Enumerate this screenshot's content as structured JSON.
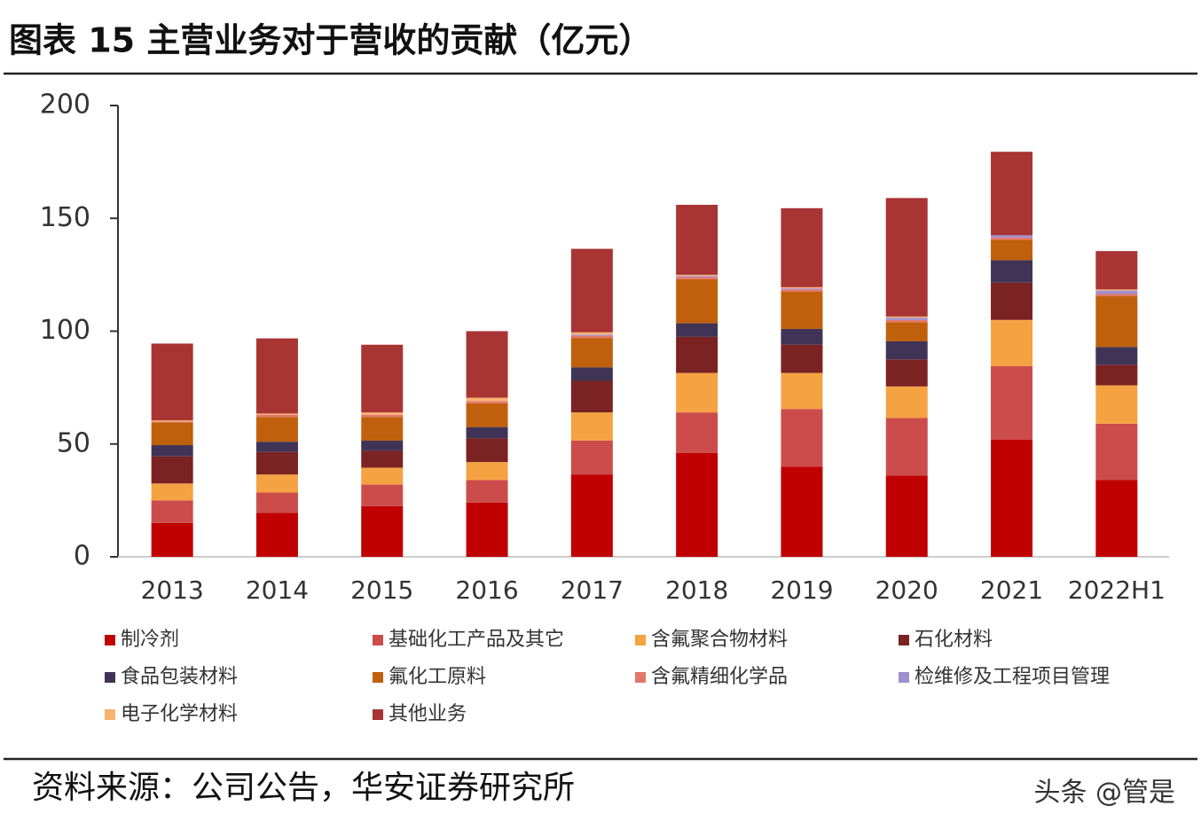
{
  "chart_data": {
    "type": "stacked_bar",
    "title": "图表 15 主营业务对于营收的贡献（亿元）",
    "categories": [
      "2013",
      "2014",
      "2015",
      "2016",
      "2017",
      "2018",
      "2019",
      "2020",
      "2021",
      "2022H1"
    ],
    "series": [
      {
        "name": "制冷剂",
        "color": "#c00000",
        "values": [
          15,
          19.5,
          22.5,
          24,
          36.5,
          46,
          40,
          36,
          52,
          34
        ]
      },
      {
        "name": "基础化工产品及其它",
        "color": "#cc4c4c",
        "values": [
          10,
          9,
          9.5,
          10,
          15,
          18,
          25.5,
          25.5,
          32.5,
          25
        ]
      },
      {
        "name": "含氟聚合物材料",
        "color": "#f5a243",
        "values": [
          7.5,
          8,
          7.5,
          8,
          12.5,
          17.5,
          16,
          14,
          20.5,
          17
        ]
      },
      {
        "name": "石化材料",
        "color": "#7b2222",
        "values": [
          12,
          10,
          7.5,
          10.5,
          14,
          16,
          12.5,
          12,
          16.5,
          9
        ]
      },
      {
        "name": "食品包装材料",
        "color": "#403456",
        "values": [
          5,
          4.5,
          4.5,
          5,
          6,
          6,
          7,
          8,
          10,
          8
        ]
      },
      {
        "name": "氟化工原料",
        "color": "#c0600c",
        "values": [
          10,
          11,
          10.5,
          10.5,
          13,
          19.5,
          16.5,
          8.5,
          9,
          22.5
        ]
      },
      {
        "name": "含氟精细化学品",
        "color": "#e2786c",
        "values": [
          0.5,
          1,
          1,
          1,
          1,
          1,
          1,
          1,
          1,
          1
        ]
      },
      {
        "name": "检维修及工程项目管理",
        "color": "#9f8fd2",
        "values": [
          0,
          0,
          0,
          0,
          0.5,
          0.5,
          0.5,
          1,
          1,
          1.5
        ]
      },
      {
        "name": "电子化学材料",
        "color": "#f9b26f",
        "values": [
          0.5,
          0.5,
          1,
          1.5,
          1,
          0.5,
          0.5,
          0.5,
          0,
          0.5
        ]
      },
      {
        "name": "其他业务",
        "color": "#a93434",
        "values": [
          34,
          33.3,
          30,
          29.5,
          37,
          31,
          35,
          52.5,
          37,
          17
        ]
      }
    ],
    "ylim": [
      0,
      200
    ],
    "yticks": [
      0,
      50,
      100,
      150,
      200
    ],
    "source": "资料来源：公司公告，华安证券研究所",
    "watermark": "头条 @管是"
  }
}
